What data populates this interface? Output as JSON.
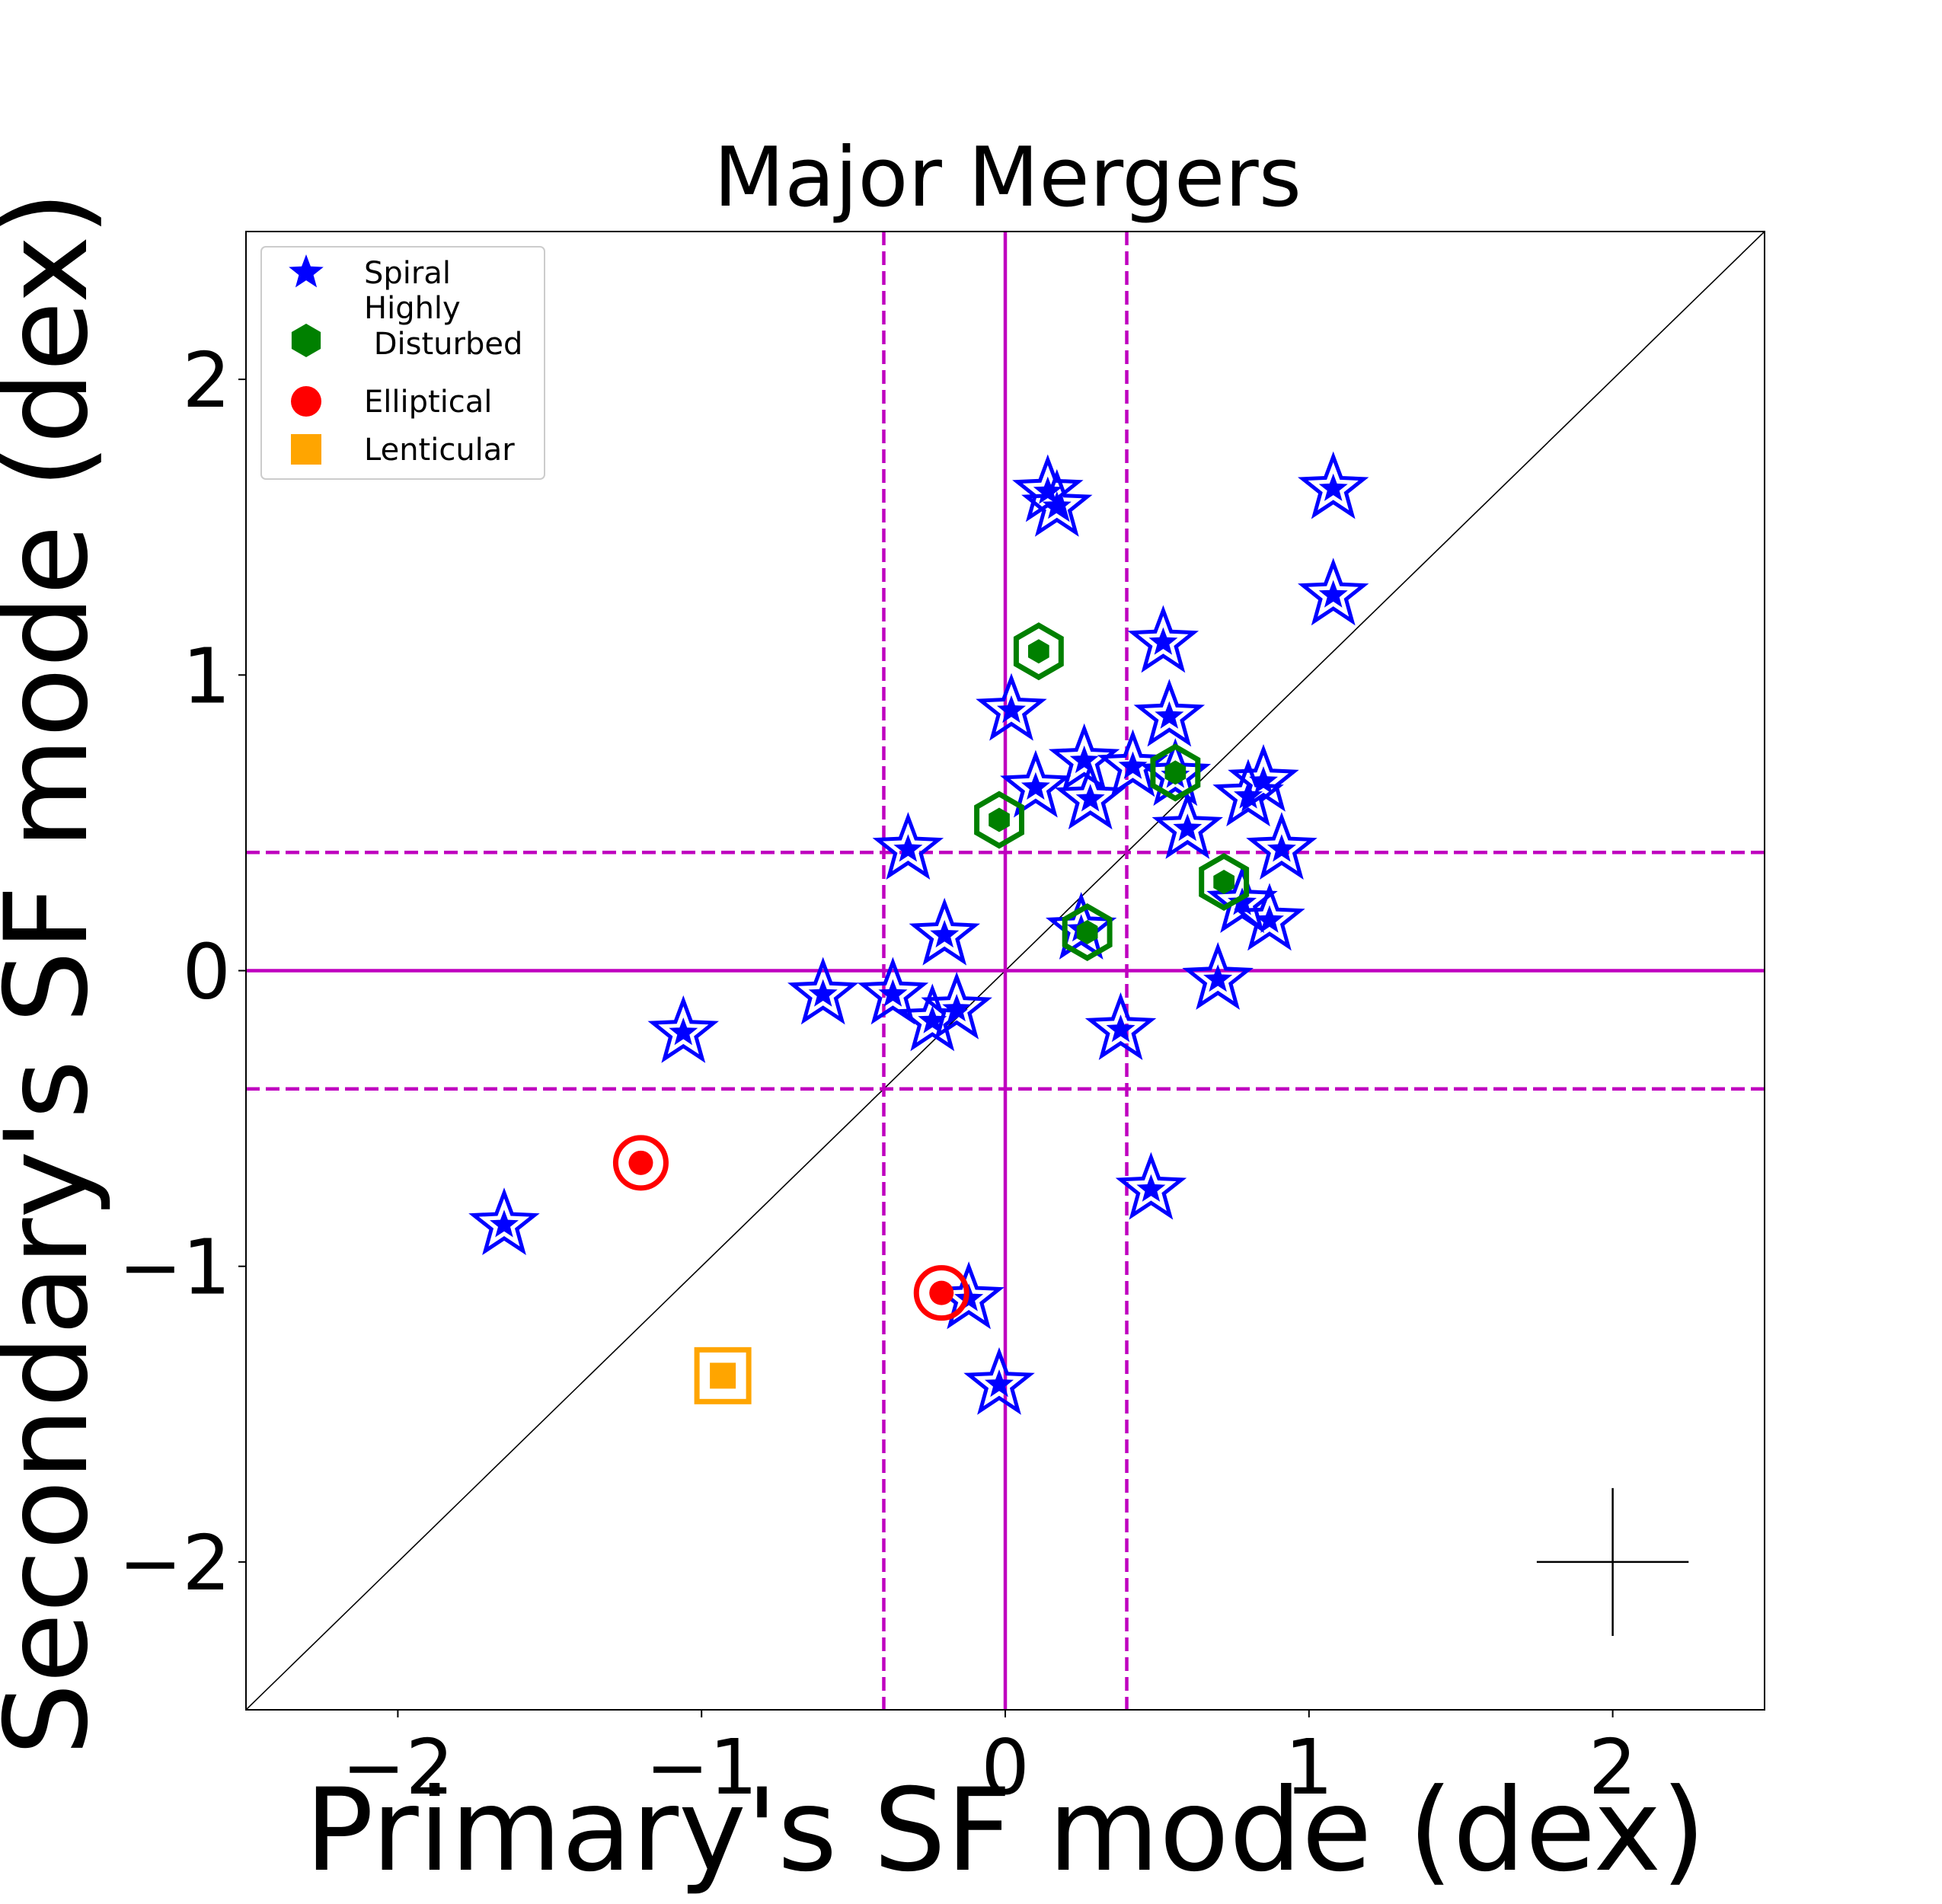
{
  "chart_data": {
    "type": "scatter",
    "title": "Major Mergers",
    "xlabel": "Primary's SF mode (dex)",
    "ylabel": "Secondary's SF mode (dex)",
    "xlim": [
      -2.5,
      2.5
    ],
    "ylim": [
      -2.5,
      2.5
    ],
    "xticks": [
      -2,
      -1,
      0,
      1,
      2
    ],
    "yticks": [
      -2,
      -1,
      0,
      1,
      2
    ],
    "tick_labels": {
      "-2": "−2",
      "-1": "−1",
      "0": "0",
      "1": "1",
      "2": "2"
    },
    "reference_lines": {
      "solid_x": 0,
      "solid_y": 0,
      "dashed_x": [
        -0.4,
        0.4
      ],
      "dashed_y": [
        -0.4,
        0.4
      ],
      "diagonal": "y = x"
    },
    "error_bar": {
      "x": 2.0,
      "y": -2.0,
      "xerr": 0.25,
      "yerr": 0.25
    },
    "legend": {
      "location": "upper-left",
      "entries": [
        {
          "label": "Spiral",
          "marker": "star",
          "color": "#0000ff"
        },
        {
          "label": "Highly\n Disturbed",
          "marker": "hexagon",
          "color": "#008000"
        },
        {
          "label": "Elliptical",
          "marker": "circle",
          "color": "#ff0000"
        },
        {
          "label": "Lenticular",
          "marker": "square",
          "color": "#ffa500"
        }
      ]
    },
    "series": [
      {
        "name": "Spiral",
        "marker": "star",
        "color": "#0000ff",
        "points": [
          [
            0.14,
            1.62
          ],
          [
            0.17,
            1.57
          ],
          [
            1.08,
            1.63
          ],
          [
            1.08,
            1.27
          ],
          [
            0.52,
            1.11
          ],
          [
            0.54,
            0.86
          ],
          [
            0.02,
            0.88
          ],
          [
            0.26,
            0.71
          ],
          [
            0.1,
            0.62
          ],
          [
            0.28,
            0.58
          ],
          [
            0.42,
            0.69
          ],
          [
            0.56,
            0.66
          ],
          [
            0.6,
            0.48
          ],
          [
            0.8,
            0.59
          ],
          [
            0.85,
            0.64
          ],
          [
            0.91,
            0.41
          ],
          [
            0.78,
            0.23
          ],
          [
            0.87,
            0.17
          ],
          [
            -0.32,
            0.41
          ],
          [
            -0.2,
            0.12
          ],
          [
            0.25,
            0.14
          ],
          [
            0.7,
            -0.03
          ],
          [
            -0.6,
            -0.08
          ],
          [
            -0.37,
            -0.08
          ],
          [
            -0.24,
            -0.17
          ],
          [
            -0.16,
            -0.13
          ],
          [
            0.38,
            -0.2
          ],
          [
            -1.06,
            -0.21
          ],
          [
            0.48,
            -0.74
          ],
          [
            -1.65,
            -0.86
          ],
          [
            -0.12,
            -1.11
          ],
          [
            -0.02,
            -1.4
          ]
        ]
      },
      {
        "name": "Highly Disturbed",
        "marker": "hexagon",
        "color": "#008000",
        "points": [
          [
            0.11,
            1.08
          ],
          [
            -0.02,
            0.51
          ],
          [
            0.56,
            0.67
          ],
          [
            0.72,
            0.3
          ],
          [
            0.27,
            0.13
          ]
        ]
      },
      {
        "name": "Elliptical",
        "marker": "circle",
        "color": "#ff0000",
        "points": [
          [
            -1.2,
            -0.65
          ],
          [
            -0.21,
            -1.09
          ]
        ]
      },
      {
        "name": "Lenticular",
        "marker": "square",
        "color": "#ffa500",
        "points": [
          [
            -0.93,
            -1.37
          ]
        ]
      }
    ]
  }
}
